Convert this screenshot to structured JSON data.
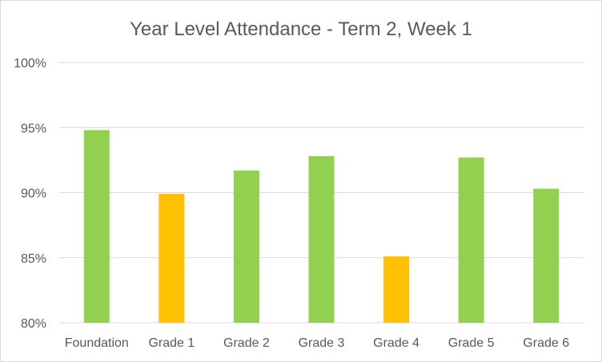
{
  "chart_data": {
    "type": "bar",
    "title": "Year Level Attendance - Term 2, Week 1",
    "xlabel": "",
    "ylabel": "",
    "categories": [
      "Foundation",
      "Grade 1",
      "Grade 2",
      "Grade 3",
      "Grade 4",
      "Grade 5",
      "Grade 6"
    ],
    "values": [
      94.8,
      89.9,
      91.7,
      92.8,
      85.1,
      92.7,
      90.3
    ],
    "bar_colors": [
      "#92d050",
      "#ffc000",
      "#92d050",
      "#92d050",
      "#ffc000",
      "#92d050",
      "#92d050"
    ],
    "ylim": [
      80,
      100
    ],
    "yticks": [
      80,
      85,
      90,
      95,
      100
    ],
    "ytick_labels": [
      "80%",
      "85%",
      "90%",
      "95%",
      "100%"
    ],
    "grid": true,
    "legend": "none"
  }
}
